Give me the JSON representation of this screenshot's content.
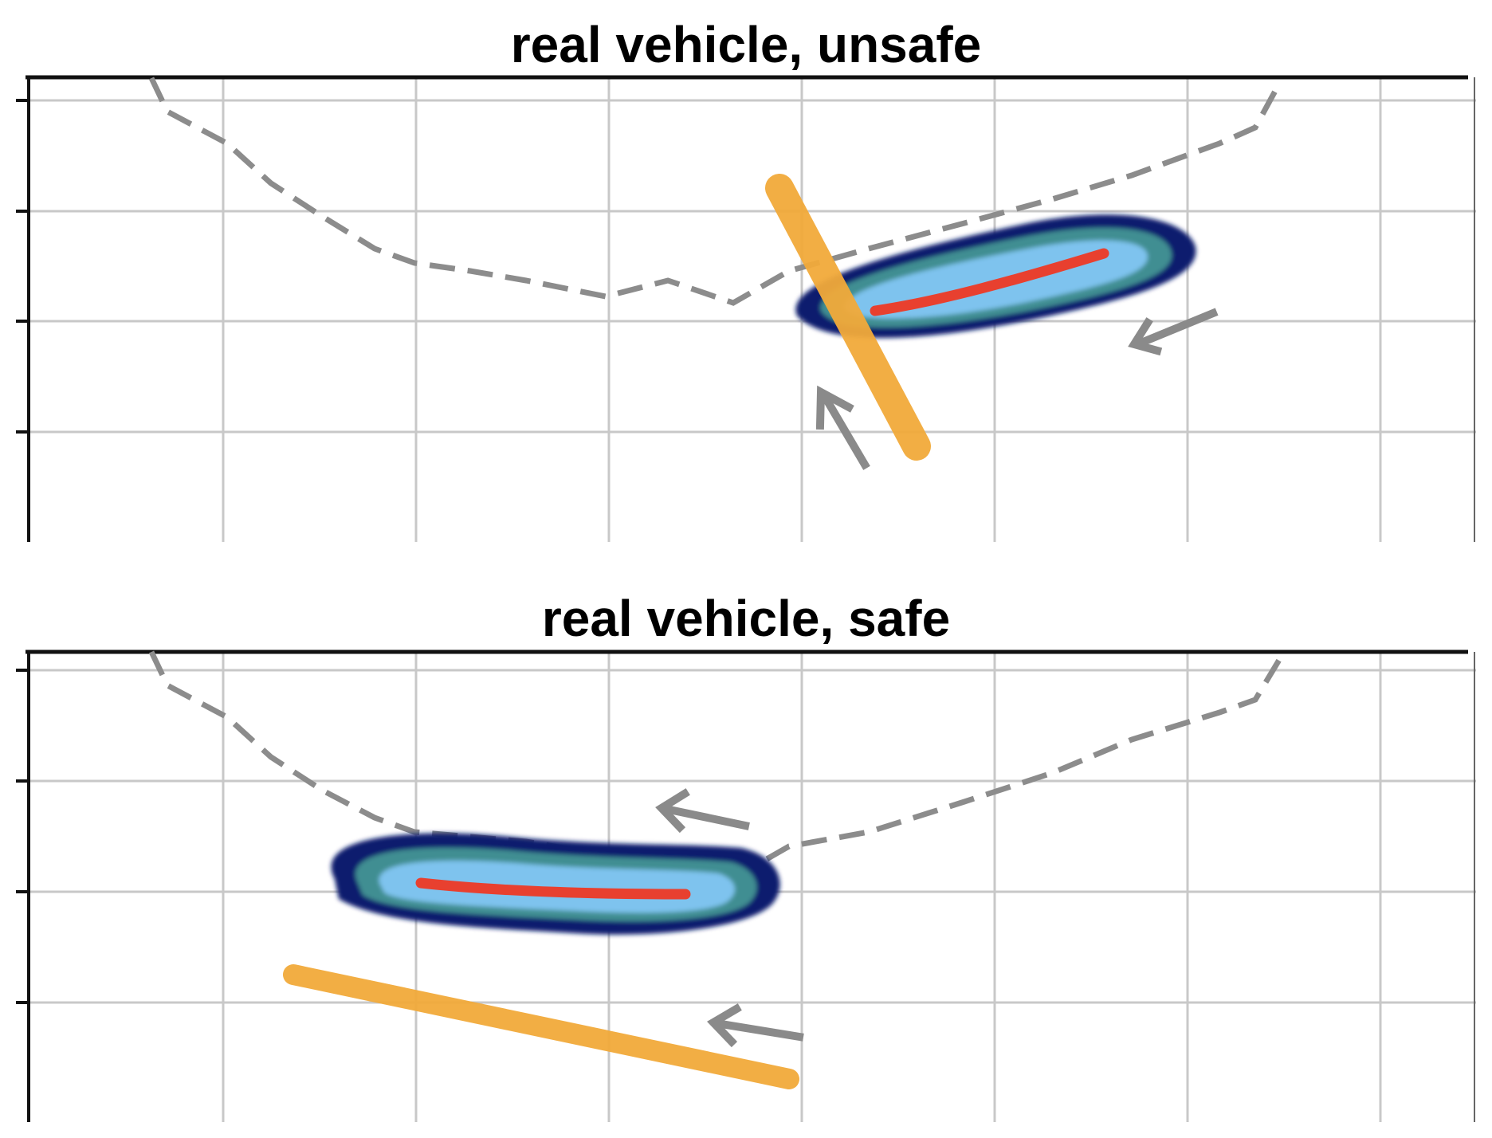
{
  "panels": [
    {
      "title": "real vehicle, unsafe",
      "scene": "unsafe"
    },
    {
      "title": "real vehicle, safe",
      "scene": "safe"
    }
  ],
  "colors": {
    "background": "#ffffff",
    "grid": "#c8c8c8",
    "axis": "#111111",
    "boundary_dashed": "#8c8c8c",
    "other_vehicle": "#f2aa3a",
    "predicted_outer": "#0b1f6e",
    "predicted_mid": "#3f8e92",
    "predicted_inner": "#7ec3ee",
    "predicted_core": "#93cff3",
    "ego_path": "#e8402f",
    "motion_arrow": "#8a8a8a"
  },
  "icons": {
    "motion_arrow": "arrow-icon"
  }
}
